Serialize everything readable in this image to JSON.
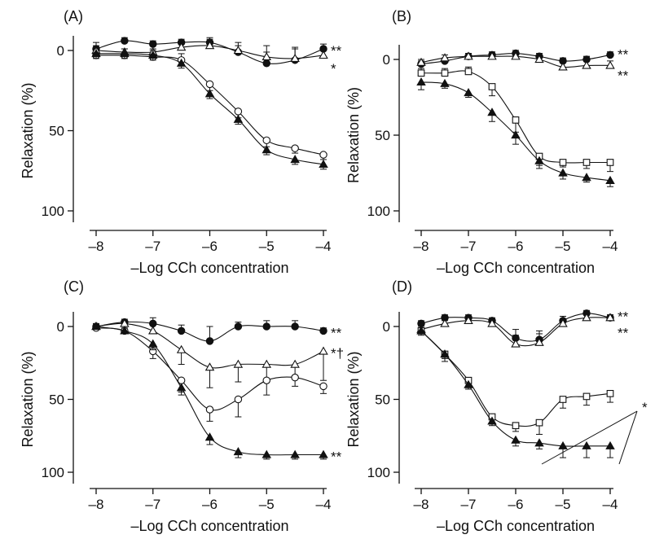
{
  "chart_data": [
    {
      "panel": "(A)",
      "type": "line",
      "xlabel": "–Log CCh concentration",
      "ylabel": "Relaxation (%)",
      "xlim": [
        -8,
        -4
      ],
      "ylim": [
        0,
        100
      ],
      "y_inverted": true,
      "x_ticks": [
        "-8",
        "-7",
        "-6",
        "-5",
        "-4"
      ],
      "y_ticks": [
        "0",
        "50",
        "100"
      ],
      "x": [
        -8,
        -7.5,
        -7,
        -6.5,
        -6,
        -5.5,
        -5,
        -4.5,
        -4
      ],
      "series": [
        {
          "marker": "filled-circle",
          "values": [
            -1,
            -6,
            -4,
            -5,
            -5,
            1,
            8,
            6,
            -1
          ],
          "err": [
            2,
            2,
            2,
            2,
            3,
            4,
            7,
            8,
            3
          ],
          "annotation": "**"
        },
        {
          "marker": "open-triangle",
          "values": [
            0,
            1,
            1,
            -2,
            -3,
            0,
            4,
            5,
            3
          ],
          "err": [
            2,
            2,
            2,
            3,
            4,
            5,
            7,
            6,
            4
          ],
          "annotation": "*"
        },
        {
          "marker": "open-circle",
          "values": [
            3,
            3,
            4,
            6,
            21,
            38,
            56,
            61,
            65
          ],
          "err": [
            8,
            4,
            4,
            4,
            4,
            4,
            4,
            3,
            3
          ],
          "annotation": ""
        },
        {
          "marker": "filled-triangle",
          "values": [
            2,
            2,
            3,
            8,
            27,
            43,
            62,
            68,
            71
          ],
          "err": [
            3,
            3,
            3,
            3,
            3,
            3,
            3,
            3,
            3
          ],
          "annotation": ""
        }
      ]
    },
    {
      "panel": "(B)",
      "type": "line",
      "xlabel": "–Log CCh concentration",
      "ylabel": "Relaxation (%)",
      "xlim": [
        -8,
        -4
      ],
      "ylim": [
        0,
        100
      ],
      "y_inverted": true,
      "x_ticks": [
        "-8",
        "-7",
        "-6",
        "-5",
        "-4"
      ],
      "y_ticks": [
        "0",
        "50",
        "100"
      ],
      "x": [
        -8,
        -7.5,
        -7,
        -6.5,
        -6,
        -5.5,
        -5,
        -4.5,
        -4
      ],
      "series": [
        {
          "marker": "filled-circle",
          "values": [
            3,
            1,
            -2,
            -3,
            -4,
            -2,
            1,
            0,
            -3
          ],
          "err": [
            2,
            2,
            2,
            2,
            2,
            2,
            2,
            2,
            2
          ],
          "annotation": "**"
        },
        {
          "marker": "open-triangle",
          "values": [
            2,
            -1,
            -2,
            -2,
            -2,
            0,
            5,
            4,
            4
          ],
          "err": [
            2,
            2,
            2,
            2,
            2,
            2,
            3,
            6,
            3
          ],
          "annotation": "**"
        },
        {
          "marker": "open-square",
          "values": [
            9,
            9,
            8,
            18,
            40,
            64,
            68,
            68,
            68
          ],
          "err": [
            3,
            3,
            3,
            6,
            8,
            6,
            3,
            4,
            6
          ],
          "annotation": ""
        },
        {
          "marker": "filled-triangle",
          "values": [
            15,
            16,
            22,
            35,
            50,
            67,
            75,
            78,
            80
          ],
          "err": [
            5,
            3,
            3,
            6,
            6,
            5,
            4,
            3,
            4
          ],
          "annotation": ""
        }
      ]
    },
    {
      "panel": "(C)",
      "type": "line",
      "xlabel": "–Log CCh concentration",
      "ylabel": "Relaxation (%)",
      "xlim": [
        -8,
        -4
      ],
      "ylim": [
        0,
        100
      ],
      "y_inverted": true,
      "x_ticks": [
        "-8",
        "-7",
        "-6",
        "-5",
        "-4"
      ],
      "y_ticks": [
        "0",
        "50",
        "100"
      ],
      "x": [
        -8,
        -7.5,
        -7,
        -6.5,
        -6,
        -5.5,
        -5,
        -4.5,
        -4
      ],
      "series": [
        {
          "marker": "filled-circle",
          "values": [
            0,
            -3,
            -2,
            3,
            10,
            0,
            0,
            0,
            3
          ],
          "err": [
            2,
            2,
            4,
            4,
            10,
            3,
            4,
            4,
            2
          ],
          "annotation": "**"
        },
        {
          "marker": "open-triangle",
          "values": [
            0,
            -2,
            3,
            16,
            28,
            26,
            26,
            26,
            17
          ],
          "err": [
            2,
            2,
            4,
            10,
            14,
            12,
            12,
            10,
            20
          ],
          "annotation": "*†"
        },
        {
          "marker": "open-circle",
          "values": [
            1,
            3,
            17,
            37,
            57,
            50,
            37,
            35,
            41
          ],
          "err": [
            2,
            2,
            5,
            8,
            8,
            12,
            10,
            6,
            5
          ],
          "annotation": ""
        },
        {
          "marker": "filled-triangle",
          "values": [
            0,
            3,
            12,
            42,
            76,
            86,
            88,
            88,
            88
          ],
          "err": [
            2,
            2,
            4,
            5,
            5,
            4,
            3,
            3,
            3
          ],
          "annotation": "**"
        }
      ]
    },
    {
      "panel": "(D)",
      "type": "line",
      "xlabel": "–Log CCh concentration",
      "ylabel": "Relaxation (%)",
      "xlim": [
        -8,
        -4
      ],
      "ylim": [
        0,
        100
      ],
      "y_inverted": true,
      "x_ticks": [
        "-8",
        "-7",
        "-6",
        "-5",
        "-4"
      ],
      "y_ticks": [
        "0",
        "50",
        "100"
      ],
      "x": [
        -8,
        -7.5,
        -7,
        -6.5,
        -6,
        -5.5,
        -5,
        -4.5,
        -4
      ],
      "series": [
        {
          "marker": "filled-circle",
          "values": [
            -2,
            -6,
            -6,
            -4,
            8,
            9,
            -4,
            -9,
            -6
          ],
          "err": [
            2,
            2,
            2,
            2,
            6,
            6,
            3,
            2,
            2
          ],
          "annotation": "**"
        },
        {
          "marker": "open-triangle",
          "values": [
            2,
            -2,
            -4,
            -2,
            12,
            11,
            -2,
            -6,
            -6
          ],
          "err": [
            2,
            2,
            2,
            2,
            6,
            6,
            3,
            2,
            2
          ],
          "annotation": "**"
        },
        {
          "marker": "open-square",
          "values": [
            3,
            19,
            37,
            62,
            68,
            66,
            50,
            48,
            46
          ],
          "err": [
            3,
            5,
            4,
            4,
            4,
            8,
            6,
            6,
            6
          ],
          "annotation": ""
        },
        {
          "marker": "filled-triangle",
          "values": [
            3,
            19,
            40,
            65,
            78,
            80,
            82,
            82,
            82
          ],
          "err": [
            3,
            3,
            3,
            3,
            4,
            4,
            8,
            8,
            8
          ],
          "annotation": "*"
        }
      ]
    }
  ]
}
